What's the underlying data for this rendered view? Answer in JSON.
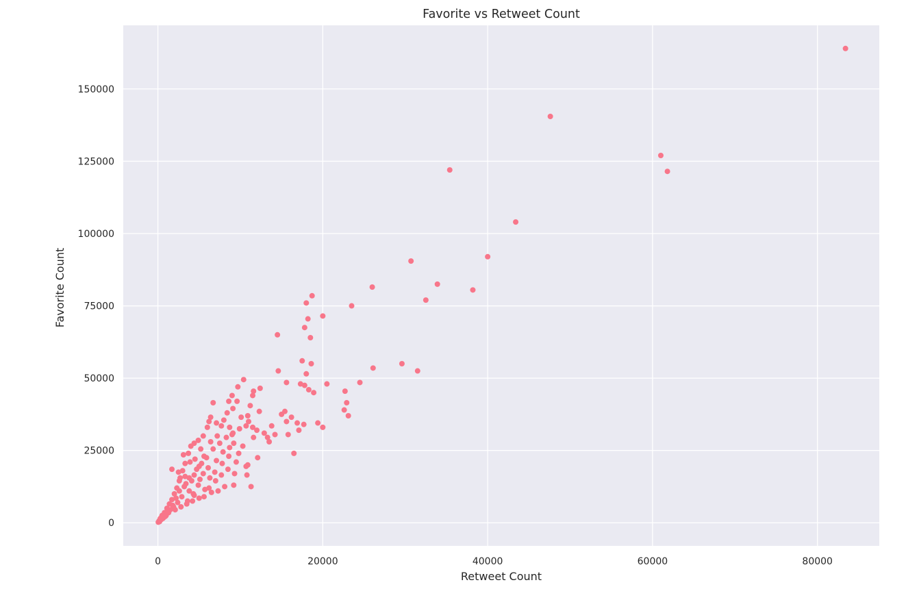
{
  "chart_data": {
    "type": "scatter",
    "title": "Favorite vs Retweet Count",
    "xlabel": "Retweet Count",
    "ylabel": "Favorite Count",
    "xlim": [
      -4200,
      87500
    ],
    "ylim": [
      -8000,
      172000
    ],
    "x_ticks": [
      0,
      20000,
      40000,
      60000,
      80000
    ],
    "y_ticks": [
      0,
      25000,
      50000,
      75000,
      100000,
      125000,
      150000
    ],
    "grid": true,
    "background": "#eaeaf2",
    "grid_color": "#ffffff",
    "marker_color": "#f8768a",
    "points": [
      [
        83400,
        164000
      ],
      [
        47600,
        140500
      ],
      [
        61000,
        127000
      ],
      [
        61800,
        121500
      ],
      [
        35400,
        122000
      ],
      [
        43400,
        104000
      ],
      [
        40000,
        92000
      ],
      [
        30700,
        90500
      ],
      [
        33900,
        82500
      ],
      [
        38200,
        80500
      ],
      [
        32500,
        77000
      ],
      [
        26000,
        81500
      ],
      [
        23500,
        75000
      ],
      [
        20000,
        71500
      ],
      [
        18700,
        78500
      ],
      [
        18000,
        76000
      ],
      [
        18200,
        70500
      ],
      [
        17800,
        67500
      ],
      [
        18500,
        64000
      ],
      [
        14500,
        65000
      ],
      [
        29600,
        55000
      ],
      [
        31500,
        52500
      ],
      [
        26100,
        53500
      ],
      [
        24500,
        48500
      ],
      [
        20500,
        48000
      ],
      [
        22700,
        45500
      ],
      [
        22900,
        41500
      ],
      [
        22600,
        39000
      ],
      [
        23100,
        37000
      ],
      [
        17500,
        56000
      ],
      [
        18600,
        55000
      ],
      [
        18000,
        51500
      ],
      [
        14600,
        52500
      ],
      [
        17300,
        48000
      ],
      [
        17800,
        47500
      ],
      [
        18300,
        46000
      ],
      [
        18900,
        45000
      ],
      [
        15600,
        48500
      ],
      [
        19400,
        34500
      ],
      [
        20000,
        33000
      ],
      [
        17700,
        34000
      ],
      [
        17100,
        32000
      ],
      [
        16900,
        34500
      ],
      [
        16200,
        36500
      ],
      [
        15600,
        35000
      ],
      [
        15400,
        38500
      ],
      [
        15000,
        37500
      ],
      [
        15800,
        30500
      ],
      [
        16500,
        24000
      ],
      [
        14200,
        30500
      ],
      [
        13500,
        28000
      ],
      [
        13300,
        29500
      ],
      [
        12900,
        31000
      ],
      [
        13800,
        33500
      ],
      [
        12300,
        38500
      ],
      [
        12400,
        46500
      ],
      [
        11600,
        45500
      ],
      [
        11500,
        44000
      ],
      [
        10400,
        49500
      ],
      [
        9700,
        47000
      ],
      [
        9000,
        44000
      ],
      [
        8600,
        42000
      ],
      [
        9600,
        42000
      ],
      [
        9100,
        39500
      ],
      [
        8400,
        38000
      ],
      [
        10100,
        36500
      ],
      [
        10900,
        37000
      ],
      [
        11200,
        40500
      ],
      [
        11000,
        35000
      ],
      [
        10700,
        33500
      ],
      [
        11500,
        33000
      ],
      [
        12000,
        32000
      ],
      [
        11600,
        29500
      ],
      [
        12100,
        22500
      ],
      [
        11300,
        12500
      ],
      [
        10900,
        20000
      ],
      [
        10700,
        19500
      ],
      [
        10800,
        16500
      ],
      [
        10300,
        26500
      ],
      [
        9800,
        24000
      ],
      [
        9500,
        21000
      ],
      [
        9200,
        27500
      ],
      [
        9000,
        30500
      ],
      [
        8700,
        33000
      ],
      [
        8000,
        35500
      ],
      [
        7700,
        33500
      ],
      [
        7100,
        34500
      ],
      [
        6700,
        41500
      ],
      [
        6400,
        36500
      ],
      [
        6200,
        35000
      ],
      [
        6000,
        33000
      ],
      [
        5500,
        30000
      ],
      [
        5200,
        25500
      ],
      [
        4900,
        28500
      ],
      [
        4400,
        27500
      ],
      [
        4000,
        26500
      ],
      [
        3700,
        24000
      ],
      [
        3300,
        20500
      ],
      [
        3000,
        18000
      ],
      [
        2600,
        14500
      ],
      [
        2300,
        12000
      ],
      [
        2000,
        10000
      ],
      [
        1700,
        8000
      ],
      [
        1400,
        6500
      ],
      [
        1100,
        5000
      ],
      [
        800,
        3500
      ],
      [
        500,
        2500
      ],
      [
        300,
        1500
      ],
      [
        150,
        700
      ],
      [
        50,
        200
      ],
      [
        1700,
        18500
      ],
      [
        2500,
        17500
      ],
      [
        3300,
        16000
      ],
      [
        4100,
        14500
      ],
      [
        4900,
        13000
      ],
      [
        5700,
        11500
      ],
      [
        6500,
        10500
      ],
      [
        7300,
        11000
      ],
      [
        8100,
        12500
      ],
      [
        9200,
        13000
      ],
      [
        4500,
        22000
      ],
      [
        5300,
        20500
      ],
      [
        6100,
        19000
      ],
      [
        6900,
        17500
      ],
      [
        7700,
        16500
      ],
      [
        8500,
        18500
      ],
      [
        9300,
        17000
      ],
      [
        3800,
        11000
      ],
      [
        4400,
        9500
      ],
      [
        5000,
        8500
      ],
      [
        5600,
        9000
      ],
      [
        6200,
        12000
      ],
      [
        7000,
        14500
      ],
      [
        7800,
        20500
      ],
      [
        8600,
        23000
      ],
      [
        3500,
        6500
      ],
      [
        4200,
        7500
      ],
      [
        2900,
        9000
      ],
      [
        2400,
        7000
      ],
      [
        1900,
        5500
      ],
      [
        1300,
        3500
      ],
      [
        900,
        2200
      ],
      [
        600,
        1500
      ],
      [
        1100,
        4000
      ],
      [
        2100,
        4500
      ],
      [
        2800,
        5500
      ],
      [
        3600,
        7500
      ],
      [
        4300,
        10000
      ],
      [
        5100,
        15000
      ],
      [
        5900,
        22500
      ],
      [
        6700,
        25500
      ],
      [
        7500,
        27500
      ],
      [
        8300,
        29500
      ],
      [
        9100,
        31000
      ],
      [
        9900,
        32500
      ],
      [
        3100,
        23500
      ],
      [
        3900,
        21000
      ],
      [
        4700,
        18500
      ],
      [
        5500,
        17000
      ],
      [
        6300,
        15500
      ],
      [
        7100,
        21500
      ],
      [
        7900,
        24500
      ],
      [
        8700,
        26000
      ],
      [
        2700,
        15500
      ],
      [
        3400,
        13500
      ],
      [
        200,
        400
      ],
      [
        400,
        1100
      ],
      [
        700,
        1800
      ],
      [
        1000,
        2500
      ],
      [
        1500,
        4500
      ],
      [
        1800,
        6000
      ],
      [
        2200,
        8500
      ],
      [
        2600,
        11000
      ],
      [
        3200,
        12500
      ],
      [
        3800,
        15500
      ],
      [
        4400,
        16500
      ],
      [
        5000,
        19500
      ],
      [
        5600,
        23000
      ],
      [
        6400,
        28000
      ],
      [
        7200,
        30000
      ]
    ]
  }
}
